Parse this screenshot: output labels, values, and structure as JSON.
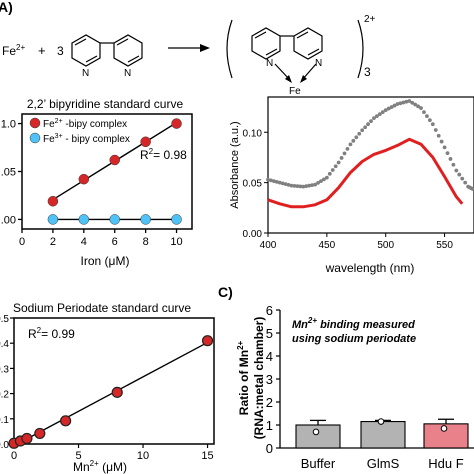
{
  "panel_labels": {
    "a": "A)",
    "c": "C)"
  },
  "reaction": {
    "fe_reactant": "Fe",
    "fe_charge": "2+",
    "plus": "+",
    "stoich": "3",
    "product_subscript": "3",
    "product_charge": "2+",
    "product_metal": "Fe",
    "n_label": "N"
  },
  "chart_data": [
    {
      "type": "scatter",
      "title": "2,2’ bipyridine standard curve",
      "xlabel": "Iron (μM)",
      "ylabel": "",
      "xlim": [
        0,
        11
      ],
      "ylim": [
        -0.1,
        1.1
      ],
      "xticks": [
        "0",
        "2",
        "4",
        "6",
        "8",
        "10"
      ],
      "yticks": [
        ".00",
        ".05",
        "1.0"
      ],
      "legend": {
        "placement": "top-left",
        "items": [
          {
            "name": "Fe",
            "sup": "2+",
            "suffix": " -bipy complex",
            "color": "#d62728"
          },
          {
            "name": "Fe",
            "sup": "3+",
            "suffix": " - bipy complex",
            "color": "#4fc3f7"
          }
        ]
      },
      "annotation": {
        "text": "R",
        "sup": "2",
        "value": "= 0.98"
      },
      "series": [
        {
          "name": "Fe2+ -bipy complex",
          "color": "#d62728",
          "x": [
            2,
            4,
            6,
            8,
            10
          ],
          "y": [
            0.19,
            0.42,
            0.62,
            0.81,
            1.0
          ]
        },
        {
          "name": "Fe3+ - bipy complex",
          "color": "#4fc3f7",
          "x": [
            2,
            4,
            6,
            8,
            10
          ],
          "y": [
            0,
            0,
            0,
            0,
            0
          ]
        }
      ]
    },
    {
      "type": "line",
      "xlabel": "wavelength (nm)",
      "ylabel": "Absorbance (a.u.)",
      "xlim": [
        400,
        575
      ],
      "ylim": [
        0,
        0.135
      ],
      "xticks": [
        "400",
        "450",
        "500",
        "550"
      ],
      "yticks": [
        "0.00",
        "0.05",
        "0.10"
      ],
      "series": [
        {
          "color": "#808080",
          "x": [
            400,
            410,
            420,
            430,
            440,
            450,
            460,
            470,
            480,
            490,
            500,
            510,
            520,
            530,
            540,
            550,
            560,
            570,
            575
          ],
          "y": [
            0.053,
            0.05,
            0.047,
            0.046,
            0.048,
            0.055,
            0.07,
            0.088,
            0.102,
            0.114,
            0.122,
            0.128,
            0.131,
            0.124,
            0.108,
            0.085,
            0.062,
            0.046,
            0.043
          ]
        },
        {
          "color": "#e02020",
          "x": [
            400,
            410,
            420,
            430,
            440,
            450,
            460,
            470,
            480,
            490,
            500,
            510,
            520,
            530,
            540,
            550,
            560,
            565
          ],
          "y": [
            0.033,
            0.029,
            0.026,
            0.026,
            0.028,
            0.033,
            0.045,
            0.06,
            0.071,
            0.078,
            0.082,
            0.087,
            0.093,
            0.088,
            0.075,
            0.056,
            0.036,
            0.029
          ]
        }
      ]
    },
    {
      "type": "scatter",
      "title": "Sodium Periodate standard curve",
      "xlabel": "Mn",
      "xlabel_sup": "2+",
      "xlabel_suffix": " (μM)",
      "ylabel": "",
      "xlim": [
        0,
        15.5
      ],
      "ylim": [
        0,
        0.5
      ],
      "xticks": [
        "0",
        "5",
        "10",
        "15"
      ],
      "yticks": [
        "0.0",
        "0.1",
        "0.2",
        "0.3",
        "0.4",
        "0.5"
      ],
      "annotation": {
        "text": "R",
        "sup": "2",
        "value": "= 0.99"
      },
      "series": [
        {
          "color": "#d62728",
          "x": [
            0,
            0.5,
            1,
            2,
            4,
            8,
            15
          ],
          "y": [
            0.003,
            0.012,
            0.022,
            0.042,
            0.092,
            0.205,
            0.41
          ]
        }
      ]
    },
    {
      "type": "bar",
      "ylabel": "Ratio of Mn",
      "ylabel_sup": "2+",
      "ylabel2": "(RNA:metal chamber)",
      "ylim": [
        0,
        6
      ],
      "yticks": [
        "0",
        "1",
        "2",
        "3",
        "4",
        "5",
        "6"
      ],
      "annotation": {
        "line1": "Mn",
        "line1_sup": "2+",
        "line1_suffix": " binding measured",
        "line2": "using sodium periodate"
      },
      "categories": [
        "Buffer",
        "GlmS",
        "Hdu F"
      ],
      "values": [
        1.0,
        1.15,
        1.05
      ],
      "errors": [
        0.2,
        0.05,
        0.2
      ],
      "dots": [
        0.7,
        1.15,
        0.85
      ],
      "colors": [
        "#b3b3b3",
        "#b3b3b3",
        "#e8818a"
      ]
    }
  ]
}
